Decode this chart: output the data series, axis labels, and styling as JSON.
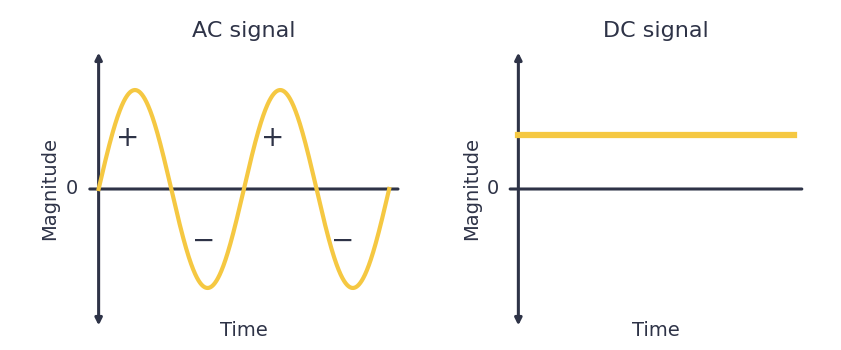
{
  "ac_title": "AC signal",
  "dc_title": "DC signal",
  "xlabel": "Time",
  "ylabel": "Magnitude",
  "zero_label": "0",
  "plus_label": "+",
  "minus_label": "−",
  "signal_color": "#F5C842",
  "axis_color": "#2E3347",
  "text_color": "#2E3347",
  "bg_color": "#ffffff",
  "signal_linewidth": 3.0,
  "axis_linewidth": 2.2,
  "ac_amplitude": 1.0,
  "dc_level": 0.55,
  "title_fontsize": 16,
  "label_fontsize": 14,
  "zero_fontsize": 14,
  "plus_minus_fontsize": 20,
  "ylim_min": -1.45,
  "ylim_max": 1.45,
  "xlim_min": 0.0,
  "xlim_max": 1.0
}
